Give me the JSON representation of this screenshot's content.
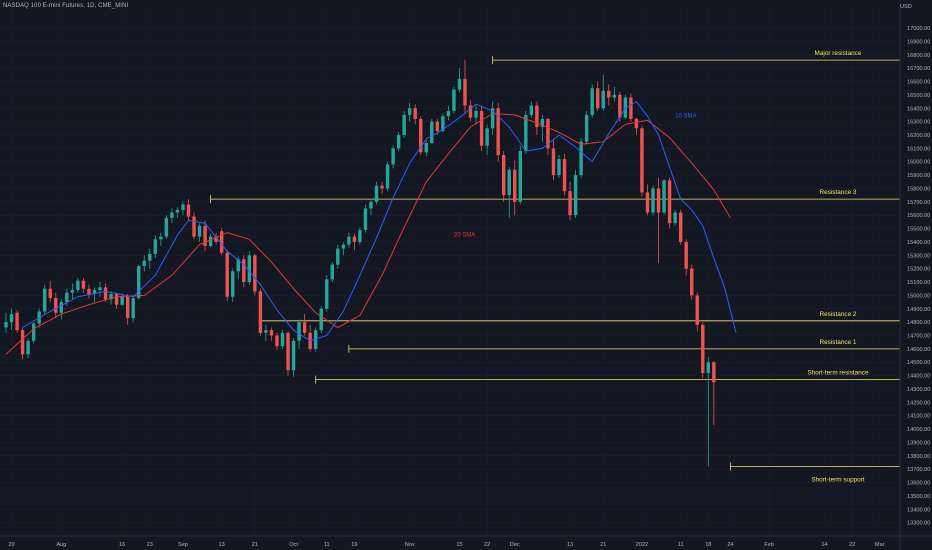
{
  "header": {
    "title": "NASDAQ 100 E-mini Futures, 1D, CME_MINI"
  },
  "axis": {
    "currency": "USD"
  },
  "colors": {
    "background": "#131722",
    "up": "#26a69a",
    "down": "#ef5350",
    "sma10": "#2962ff",
    "sma20": "#e53935",
    "levels": "#f7e35c",
    "text": "#b2b5be"
  },
  "chart_data": {
    "type": "candlestick",
    "ylim": [
      13200,
      17150
    ],
    "y_ticks": [
      13300,
      13400,
      13500,
      13600,
      13700,
      13800,
      13900,
      14000,
      14100,
      14200,
      14300,
      14400,
      14500,
      14600,
      14700,
      14800,
      14900,
      15000,
      15100,
      15200,
      15300,
      15400,
      15500,
      15600,
      15700,
      15800,
      15900,
      16000,
      16100,
      16200,
      16300,
      16400,
      16500,
      16600,
      16700,
      16800,
      16900,
      17000
    ],
    "y_tick_labels": [
      "13300.00",
      "13400.00",
      "13500.00",
      "13600.00",
      "13700.00",
      "13800.00",
      "13900.00",
      "14000.00",
      "14100.00",
      "14200.00",
      "14300.00",
      "14400.00",
      "14500.00",
      "14600.00",
      "14700.00",
      "14800.00",
      "14900.00",
      "15000.00",
      "15100.00",
      "15200.00",
      "15300.00",
      "15400.00",
      "15500.00",
      "15600.00",
      "15700.00",
      "15800.00",
      "15900.00",
      "16000.00",
      "16100.00",
      "16200.00",
      "16300.00",
      "16400.00",
      "16500.00",
      "16600.00",
      "16700.00",
      "16800.00",
      "16900.00",
      "17000.00"
    ],
    "x_labels": [
      {
        "label": "20",
        "i": 1
      },
      {
        "label": "Aug",
        "i": 10
      },
      {
        "label": "16",
        "i": 21
      },
      {
        "label": "23",
        "i": 26
      },
      {
        "label": "Sep",
        "i": 32
      },
      {
        "label": "13",
        "i": 39
      },
      {
        "label": "21",
        "i": 45
      },
      {
        "label": "Oct",
        "i": 52
      },
      {
        "label": "11",
        "i": 58
      },
      {
        "label": "19",
        "i": 63
      },
      {
        "label": "Nov",
        "i": 73
      },
      {
        "label": "15",
        "i": 82
      },
      {
        "label": "22",
        "i": 87
      },
      {
        "label": "Dec",
        "i": 92
      },
      {
        "label": "13",
        "i": 102
      },
      {
        "label": "21",
        "i": 108
      },
      {
        "label": "2022",
        "i": 115
      },
      {
        "label": "11",
        "i": 122
      },
      {
        "label": "18",
        "i": 127
      },
      {
        "label": "24",
        "i": 131
      },
      {
        "label": "Feb",
        "i": 138
      },
      {
        "label": "14",
        "i": 148
      },
      {
        "label": "22",
        "i": 153
      },
      {
        "label": "Mar",
        "i": 158
      }
    ],
    "candles": [
      {
        "o": 14760,
        "h": 14870,
        "l": 14720,
        "c": 14800
      },
      {
        "o": 14800,
        "h": 14900,
        "l": 14740,
        "c": 14860
      },
      {
        "o": 14870,
        "h": 14890,
        "l": 14720,
        "c": 14740
      },
      {
        "o": 14740,
        "h": 14760,
        "l": 14520,
        "c": 14560
      },
      {
        "o": 14560,
        "h": 14680,
        "l": 14530,
        "c": 14660
      },
      {
        "o": 14660,
        "h": 14800,
        "l": 14640,
        "c": 14790
      },
      {
        "o": 14790,
        "h": 14900,
        "l": 14760,
        "c": 14880
      },
      {
        "o": 14880,
        "h": 15080,
        "l": 14860,
        "c": 15050
      },
      {
        "o": 15050,
        "h": 15110,
        "l": 14950,
        "c": 14980
      },
      {
        "o": 14980,
        "h": 15020,
        "l": 14830,
        "c": 14870
      },
      {
        "o": 14870,
        "h": 14970,
        "l": 14820,
        "c": 14950
      },
      {
        "o": 14950,
        "h": 15050,
        "l": 14920,
        "c": 15020
      },
      {
        "o": 15020,
        "h": 15090,
        "l": 14970,
        "c": 15040
      },
      {
        "o": 15040,
        "h": 15130,
        "l": 15020,
        "c": 15110
      },
      {
        "o": 15110,
        "h": 15130,
        "l": 15020,
        "c": 15050
      },
      {
        "o": 15050,
        "h": 15080,
        "l": 14980,
        "c": 15010
      },
      {
        "o": 15010,
        "h": 15060,
        "l": 14950,
        "c": 15040
      },
      {
        "o": 15040,
        "h": 15100,
        "l": 14990,
        "c": 15060
      },
      {
        "o": 15060,
        "h": 15090,
        "l": 14950,
        "c": 14970
      },
      {
        "o": 14970,
        "h": 15030,
        "l": 14930,
        "c": 15010
      },
      {
        "o": 15010,
        "h": 15020,
        "l": 14900,
        "c": 14930
      },
      {
        "o": 14930,
        "h": 15010,
        "l": 14920,
        "c": 14990
      },
      {
        "o": 14990,
        "h": 15010,
        "l": 14780,
        "c": 14830
      },
      {
        "o": 14830,
        "h": 15000,
        "l": 14800,
        "c": 14980
      },
      {
        "o": 14980,
        "h": 15230,
        "l": 14970,
        "c": 15220
      },
      {
        "o": 15220,
        "h": 15300,
        "l": 15180,
        "c": 15260
      },
      {
        "o": 15260,
        "h": 15350,
        "l": 15200,
        "c": 15310
      },
      {
        "o": 15310,
        "h": 15450,
        "l": 15280,
        "c": 15420
      },
      {
        "o": 15420,
        "h": 15470,
        "l": 15370,
        "c": 15440
      },
      {
        "o": 15440,
        "h": 15600,
        "l": 15420,
        "c": 15580
      },
      {
        "o": 15580,
        "h": 15650,
        "l": 15540,
        "c": 15620
      },
      {
        "o": 15620,
        "h": 15660,
        "l": 15580,
        "c": 15640
      },
      {
        "o": 15640,
        "h": 15700,
        "l": 15600,
        "c": 15680
      },
      {
        "o": 15680,
        "h": 15720,
        "l": 15560,
        "c": 15590
      },
      {
        "o": 15590,
        "h": 15620,
        "l": 15420,
        "c": 15440
      },
      {
        "o": 15440,
        "h": 15540,
        "l": 15400,
        "c": 15520
      },
      {
        "o": 15520,
        "h": 15560,
        "l": 15330,
        "c": 15370
      },
      {
        "o": 15370,
        "h": 15460,
        "l": 15360,
        "c": 15440
      },
      {
        "o": 15440,
        "h": 15470,
        "l": 15380,
        "c": 15400
      },
      {
        "o": 15480,
        "h": 15500,
        "l": 15300,
        "c": 15320
      },
      {
        "o": 15320,
        "h": 15340,
        "l": 14960,
        "c": 14990
      },
      {
        "o": 14990,
        "h": 15200,
        "l": 14950,
        "c": 15180
      },
      {
        "o": 15180,
        "h": 15290,
        "l": 15120,
        "c": 15270
      },
      {
        "o": 15270,
        "h": 15300,
        "l": 15060,
        "c": 15100
      },
      {
        "o": 15100,
        "h": 15330,
        "l": 15080,
        "c": 15300
      },
      {
        "o": 15300,
        "h": 15310,
        "l": 15000,
        "c": 15030
      },
      {
        "o": 15030,
        "h": 15050,
        "l": 14700,
        "c": 14720
      },
      {
        "o": 14720,
        "h": 14780,
        "l": 14660,
        "c": 14740
      },
      {
        "o": 14740,
        "h": 14760,
        "l": 14660,
        "c": 14700
      },
      {
        "o": 14700,
        "h": 14720,
        "l": 14590,
        "c": 14620
      },
      {
        "o": 14620,
        "h": 14740,
        "l": 14600,
        "c": 14720
      },
      {
        "o": 14720,
        "h": 14730,
        "l": 14400,
        "c": 14440
      },
      {
        "o": 14440,
        "h": 14680,
        "l": 14390,
        "c": 14660
      },
      {
        "o": 14660,
        "h": 14820,
        "l": 14600,
        "c": 14800
      },
      {
        "o": 14800,
        "h": 14860,
        "l": 14700,
        "c": 14720
      },
      {
        "o": 14720,
        "h": 14780,
        "l": 14580,
        "c": 14600
      },
      {
        "o": 14600,
        "h": 14760,
        "l": 14580,
        "c": 14740
      },
      {
        "o": 14740,
        "h": 14920,
        "l": 14720,
        "c": 14900
      },
      {
        "o": 14900,
        "h": 15150,
        "l": 14880,
        "c": 15120
      },
      {
        "o": 15120,
        "h": 15250,
        "l": 15100,
        "c": 15230
      },
      {
        "o": 15230,
        "h": 15380,
        "l": 15200,
        "c": 15350
      },
      {
        "o": 15350,
        "h": 15400,
        "l": 15300,
        "c": 15380
      },
      {
        "o": 15380,
        "h": 15470,
        "l": 15360,
        "c": 15440
      },
      {
        "o": 15440,
        "h": 15460,
        "l": 15340,
        "c": 15400
      },
      {
        "o": 15400,
        "h": 15510,
        "l": 15380,
        "c": 15490
      },
      {
        "o": 15490,
        "h": 15680,
        "l": 15470,
        "c": 15650
      },
      {
        "o": 15650,
        "h": 15720,
        "l": 15600,
        "c": 15700
      },
      {
        "o": 15700,
        "h": 15850,
        "l": 15680,
        "c": 15820
      },
      {
        "o": 15820,
        "h": 15850,
        "l": 15760,
        "c": 15800
      },
      {
        "o": 15800,
        "h": 16000,
        "l": 15780,
        "c": 15980
      },
      {
        "o": 15980,
        "h": 16120,
        "l": 15950,
        "c": 16100
      },
      {
        "o": 16100,
        "h": 16220,
        "l": 16080,
        "c": 16200
      },
      {
        "o": 16200,
        "h": 16380,
        "l": 16180,
        "c": 16350
      },
      {
        "o": 16350,
        "h": 16440,
        "l": 16300,
        "c": 16400
      },
      {
        "o": 16400,
        "h": 16430,
        "l": 16280,
        "c": 16320
      },
      {
        "o": 16320,
        "h": 16340,
        "l": 16050,
        "c": 16070
      },
      {
        "o": 16070,
        "h": 16160,
        "l": 16040,
        "c": 16140
      },
      {
        "o": 16140,
        "h": 16320,
        "l": 16130,
        "c": 16300
      },
      {
        "o": 16300,
        "h": 16320,
        "l": 16200,
        "c": 16230
      },
      {
        "o": 16230,
        "h": 16360,
        "l": 16220,
        "c": 16340
      },
      {
        "o": 16340,
        "h": 16420,
        "l": 16310,
        "c": 16380
      },
      {
        "o": 16380,
        "h": 16560,
        "l": 16360,
        "c": 16540
      },
      {
        "o": 16540,
        "h": 16700,
        "l": 16520,
        "c": 16620
      },
      {
        "o": 16620,
        "h": 16760,
        "l": 16360,
        "c": 16420
      },
      {
        "o": 16420,
        "h": 16460,
        "l": 16300,
        "c": 16330
      },
      {
        "o": 16330,
        "h": 16420,
        "l": 16280,
        "c": 16380
      },
      {
        "o": 16380,
        "h": 16410,
        "l": 16080,
        "c": 16120
      },
      {
        "o": 16120,
        "h": 16280,
        "l": 16050,
        "c": 16250
      },
      {
        "o": 16250,
        "h": 16450,
        "l": 16200,
        "c": 16400
      },
      {
        "o": 16400,
        "h": 16440,
        "l": 16000,
        "c": 16050
      },
      {
        "o": 16050,
        "h": 16080,
        "l": 15700,
        "c": 15750
      },
      {
        "o": 15750,
        "h": 15960,
        "l": 15580,
        "c": 15940
      },
      {
        "o": 15940,
        "h": 16010,
        "l": 15600,
        "c": 15700
      },
      {
        "o": 15700,
        "h": 16120,
        "l": 15680,
        "c": 16080
      },
      {
        "o": 16080,
        "h": 16380,
        "l": 16060,
        "c": 16350
      },
      {
        "o": 16350,
        "h": 16450,
        "l": 16330,
        "c": 16420
      },
      {
        "o": 16420,
        "h": 16450,
        "l": 16200,
        "c": 16260
      },
      {
        "o": 16260,
        "h": 16350,
        "l": 16150,
        "c": 16320
      },
      {
        "o": 16320,
        "h": 16330,
        "l": 16050,
        "c": 16100
      },
      {
        "o": 16100,
        "h": 16160,
        "l": 15860,
        "c": 15900
      },
      {
        "o": 15900,
        "h": 16050,
        "l": 15880,
        "c": 16020
      },
      {
        "o": 16020,
        "h": 16060,
        "l": 15750,
        "c": 15780
      },
      {
        "o": 15780,
        "h": 15850,
        "l": 15560,
        "c": 15600
      },
      {
        "o": 15600,
        "h": 15940,
        "l": 15580,
        "c": 15900
      },
      {
        "o": 15900,
        "h": 16180,
        "l": 15880,
        "c": 16150
      },
      {
        "o": 16150,
        "h": 16380,
        "l": 16130,
        "c": 16350
      },
      {
        "o": 16350,
        "h": 16580,
        "l": 16330,
        "c": 16550
      },
      {
        "o": 16550,
        "h": 16600,
        "l": 16380,
        "c": 16400
      },
      {
        "o": 16400,
        "h": 16650,
        "l": 16380,
        "c": 16530
      },
      {
        "o": 16530,
        "h": 16580,
        "l": 16420,
        "c": 16480
      },
      {
        "o": 16480,
        "h": 16560,
        "l": 16450,
        "c": 16500
      },
      {
        "o": 16500,
        "h": 16520,
        "l": 16300,
        "c": 16330
      },
      {
        "o": 16330,
        "h": 16500,
        "l": 16320,
        "c": 16480
      },
      {
        "o": 16480,
        "h": 16510,
        "l": 16300,
        "c": 16320
      },
      {
        "o": 16320,
        "h": 16330,
        "l": 16200,
        "c": 16250
      },
      {
        "o": 16250,
        "h": 16270,
        "l": 15740,
        "c": 15770
      },
      {
        "o": 15770,
        "h": 15830,
        "l": 15600,
        "c": 15620
      },
      {
        "o": 15620,
        "h": 15820,
        "l": 15600,
        "c": 15800
      },
      {
        "o": 15800,
        "h": 15880,
        "l": 15240,
        "c": 15620
      },
      {
        "o": 15620,
        "h": 15870,
        "l": 15600,
        "c": 15860
      },
      {
        "o": 15860,
        "h": 15880,
        "l": 15500,
        "c": 15540
      },
      {
        "o": 15540,
        "h": 15640,
        "l": 15520,
        "c": 15620
      },
      {
        "o": 15620,
        "h": 15640,
        "l": 15380,
        "c": 15400
      },
      {
        "o": 15400,
        "h": 15420,
        "l": 15150,
        "c": 15200
      },
      {
        "o": 15200,
        "h": 15230,
        "l": 14970,
        "c": 15000
      },
      {
        "o": 15000,
        "h": 15020,
        "l": 14730,
        "c": 14780
      },
      {
        "o": 14780,
        "h": 14800,
        "l": 14380,
        "c": 14420
      },
      {
        "o": 14420,
        "h": 14540,
        "l": 13720,
        "c": 14500
      },
      {
        "o": 14500,
        "h": 14510,
        "l": 14030,
        "c": 14350
      }
    ],
    "sma10": [
      [
        3,
        14760
      ],
      [
        8,
        14880
      ],
      [
        13,
        14990
      ],
      [
        18,
        15030
      ],
      [
        23,
        14990
      ],
      [
        27,
        15150
      ],
      [
        31,
        15450
      ],
      [
        33,
        15560
      ],
      [
        36,
        15540
      ],
      [
        40,
        15330
      ],
      [
        43,
        15230
      ],
      [
        46,
        15080
      ],
      [
        49,
        14890
      ],
      [
        52,
        14740
      ],
      [
        55,
        14660
      ],
      [
        58,
        14700
      ],
      [
        61,
        14880
      ],
      [
        64,
        15150
      ],
      [
        67,
        15430
      ],
      [
        70,
        15730
      ],
      [
        73,
        15990
      ],
      [
        76,
        16170
      ],
      [
        79,
        16240
      ],
      [
        82,
        16330
      ],
      [
        85,
        16430
      ],
      [
        88,
        16380
      ],
      [
        91,
        16260
      ],
      [
        94,
        16080
      ],
      [
        97,
        16100
      ],
      [
        100,
        16200
      ],
      [
        103,
        16110
      ],
      [
        106,
        16000
      ],
      [
        109,
        16210
      ],
      [
        112,
        16400
      ],
      [
        114,
        16450
      ],
      [
        116,
        16340
      ],
      [
        118,
        16200
      ],
      [
        120,
        15960
      ],
      [
        122,
        15720
      ],
      [
        124,
        15640
      ],
      [
        126,
        15520
      ],
      [
        128,
        15280
      ],
      [
        130,
        15050
      ],
      [
        132,
        14720
      ]
    ],
    "sma20": [
      [
        0,
        14560
      ],
      [
        5,
        14750
      ],
      [
        10,
        14860
      ],
      [
        15,
        14930
      ],
      [
        20,
        14990
      ],
      [
        25,
        15000
      ],
      [
        30,
        15150
      ],
      [
        35,
        15380
      ],
      [
        40,
        15470
      ],
      [
        44,
        15420
      ],
      [
        48,
        15250
      ],
      [
        52,
        15050
      ],
      [
        56,
        14870
      ],
      [
        60,
        14760
      ],
      [
        64,
        14850
      ],
      [
        68,
        15150
      ],
      [
        72,
        15510
      ],
      [
        76,
        15850
      ],
      [
        80,
        16060
      ],
      [
        84,
        16260
      ],
      [
        88,
        16360
      ],
      [
        92,
        16350
      ],
      [
        96,
        16290
      ],
      [
        100,
        16220
      ],
      [
        104,
        16130
      ],
      [
        108,
        16150
      ],
      [
        112,
        16280
      ],
      [
        116,
        16310
      ],
      [
        120,
        16180
      ],
      [
        124,
        15990
      ],
      [
        128,
        15790
      ],
      [
        131,
        15580
      ]
    ],
    "levels": [
      {
        "name": "Major resistance",
        "value": 16760,
        "from": 88
      },
      {
        "name": "Resistance 3",
        "value": 15720,
        "from": 37
      },
      {
        "name": "Resistance 2",
        "value": 14810,
        "from": 46
      },
      {
        "name": "Resistance 1",
        "value": 14600,
        "from": 62
      },
      {
        "name": "Short-term resistance",
        "value": 14370,
        "from": 56
      },
      {
        "name": "Short-term support",
        "value": 13720,
        "from": 131
      }
    ],
    "annotations": [
      {
        "text": "10 SMA",
        "series": "sma10",
        "i": 121,
        "value": 16330
      },
      {
        "text": "20 SMA",
        "series": "sma20",
        "i": 81,
        "value": 15440
      }
    ]
  }
}
